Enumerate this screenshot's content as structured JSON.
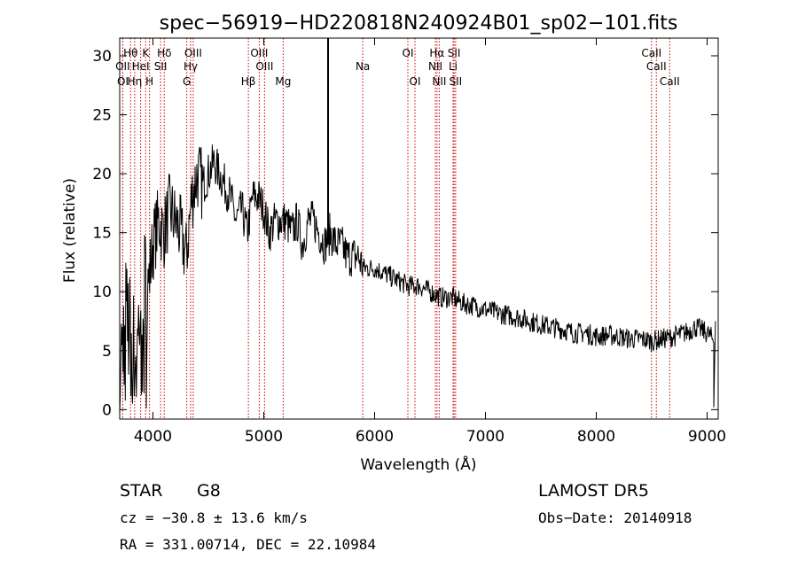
{
  "chart_data": {
    "type": "line",
    "title": "spec−56919−HD220818N240924B01_sp02−101.fits",
    "xlabel": "Wavelength (Å)",
    "ylabel": "Flux (relative)",
    "xlim": [
      3700,
      9100
    ],
    "ylim": [
      -0.8,
      31.5
    ],
    "xticks": [
      4000,
      5000,
      6000,
      7000,
      8000,
      9000
    ],
    "yticks": [
      0,
      5,
      10,
      15,
      20,
      25,
      30
    ],
    "grid": false,
    "series": [
      {
        "x": [
          3700,
          3750,
          3800,
          3850,
          3900,
          3950,
          4000,
          4050,
          4100,
          4150,
          4200,
          4250,
          4300,
          4350,
          4400,
          4450,
          4500,
          4550,
          4600,
          4650,
          4700,
          4750,
          4800,
          4850,
          4900,
          4950,
          5000,
          5050,
          5100,
          5150,
          5200,
          5250,
          5300,
          5350,
          5400,
          5450,
          5500,
          5550,
          5600,
          5650,
          5700,
          5750,
          5800,
          5850,
          5900,
          5950,
          6000,
          6100,
          6200,
          6300,
          6400,
          6500,
          6600,
          6700,
          6800,
          6900,
          7000,
          7100,
          7200,
          7300,
          7400,
          7500,
          7600,
          7700,
          7800,
          7900,
          8000,
          8100,
          8200,
          8300,
          8400,
          8500,
          8600,
          8700,
          8800,
          8900,
          9000,
          9050
        ],
        "y": [
          3,
          8,
          6,
          4,
          11,
          10,
          14,
          16,
          15,
          17,
          16,
          15,
          13,
          18,
          20,
          19,
          20,
          21,
          20,
          19,
          18,
          16,
          17,
          15,
          18,
          18,
          17,
          15,
          16,
          16,
          16,
          15,
          16,
          14,
          16,
          16,
          15,
          14,
          15,
          14,
          14,
          13,
          13,
          13,
          12,
          12,
          12,
          11.5,
          11,
          10.5,
          10.5,
          10,
          9.5,
          9.5,
          9,
          8.8,
          8.5,
          8.2,
          8,
          7.8,
          7.5,
          7.2,
          7,
          6.8,
          6.5,
          6.5,
          6.2,
          6.3,
          6.2,
          6,
          6,
          5.8,
          6,
          6.2,
          6.5,
          7,
          6.5,
          6
        ]
      }
    ],
    "spike": {
      "x": 5580,
      "y": 31.5
    },
    "annotations": [
      {
        "label": "Hθ",
        "x": 3798,
        "row": 0
      },
      {
        "label": "K",
        "x": 3934,
        "row": 0
      },
      {
        "label": "Hδ",
        "x": 4102,
        "row": 0
      },
      {
        "label": "OIII",
        "x": 4363,
        "row": 0
      },
      {
        "label": "OIII",
        "x": 4959,
        "row": 0
      },
      {
        "label": "OI",
        "x": 6300,
        "row": 0
      },
      {
        "label": "Hα",
        "x": 6563,
        "row": 0
      },
      {
        "label": "SII",
        "x": 6717,
        "row": 0
      },
      {
        "label": "CaII",
        "x": 8498,
        "row": 0
      },
      {
        "label": "OII",
        "x": 3727,
        "row": 1
      },
      {
        "label": "HeI",
        "x": 3889,
        "row": 1
      },
      {
        "label": "SII",
        "x": 4069,
        "row": 1
      },
      {
        "label": "Hγ",
        "x": 4340,
        "row": 1
      },
      {
        "label": "OIII",
        "x": 5007,
        "row": 1
      },
      {
        "label": "Na",
        "x": 5893,
        "row": 1
      },
      {
        "label": "NII",
        "x": 6548,
        "row": 1
      },
      {
        "label": "Li",
        "x": 6708,
        "row": 1
      },
      {
        "label": "CaII",
        "x": 8542,
        "row": 1
      },
      {
        "label": "OI",
        "x": 3728,
        "row": 2
      },
      {
        "label": "Hη",
        "x": 3835,
        "row": 2
      },
      {
        "label": "H",
        "x": 3969,
        "row": 2
      },
      {
        "label": "G",
        "x": 4305,
        "row": 2
      },
      {
        "label": "Hβ",
        "x": 4861,
        "row": 2
      },
      {
        "label": "Mg",
        "x": 5175,
        "row": 2
      },
      {
        "label": "OI",
        "x": 6364,
        "row": 2
      },
      {
        "label": "NII",
        "x": 6583,
        "row": 2
      },
      {
        "label": "SII",
        "x": 6731,
        "row": 2
      },
      {
        "label": "CaII",
        "x": 8662,
        "row": 2
      }
    ],
    "line_color": "#000000",
    "marker_color": "#cc0000"
  },
  "info": {
    "object_class": "STAR",
    "subclass": "G8",
    "survey": "LAMOST  DR5",
    "redshift": "cz = −30.8 ± 13.6 km/s",
    "obs_date": "Obs−Date: 20140918",
    "coords": "RA = 331.00714, DEC =  22.10984"
  }
}
